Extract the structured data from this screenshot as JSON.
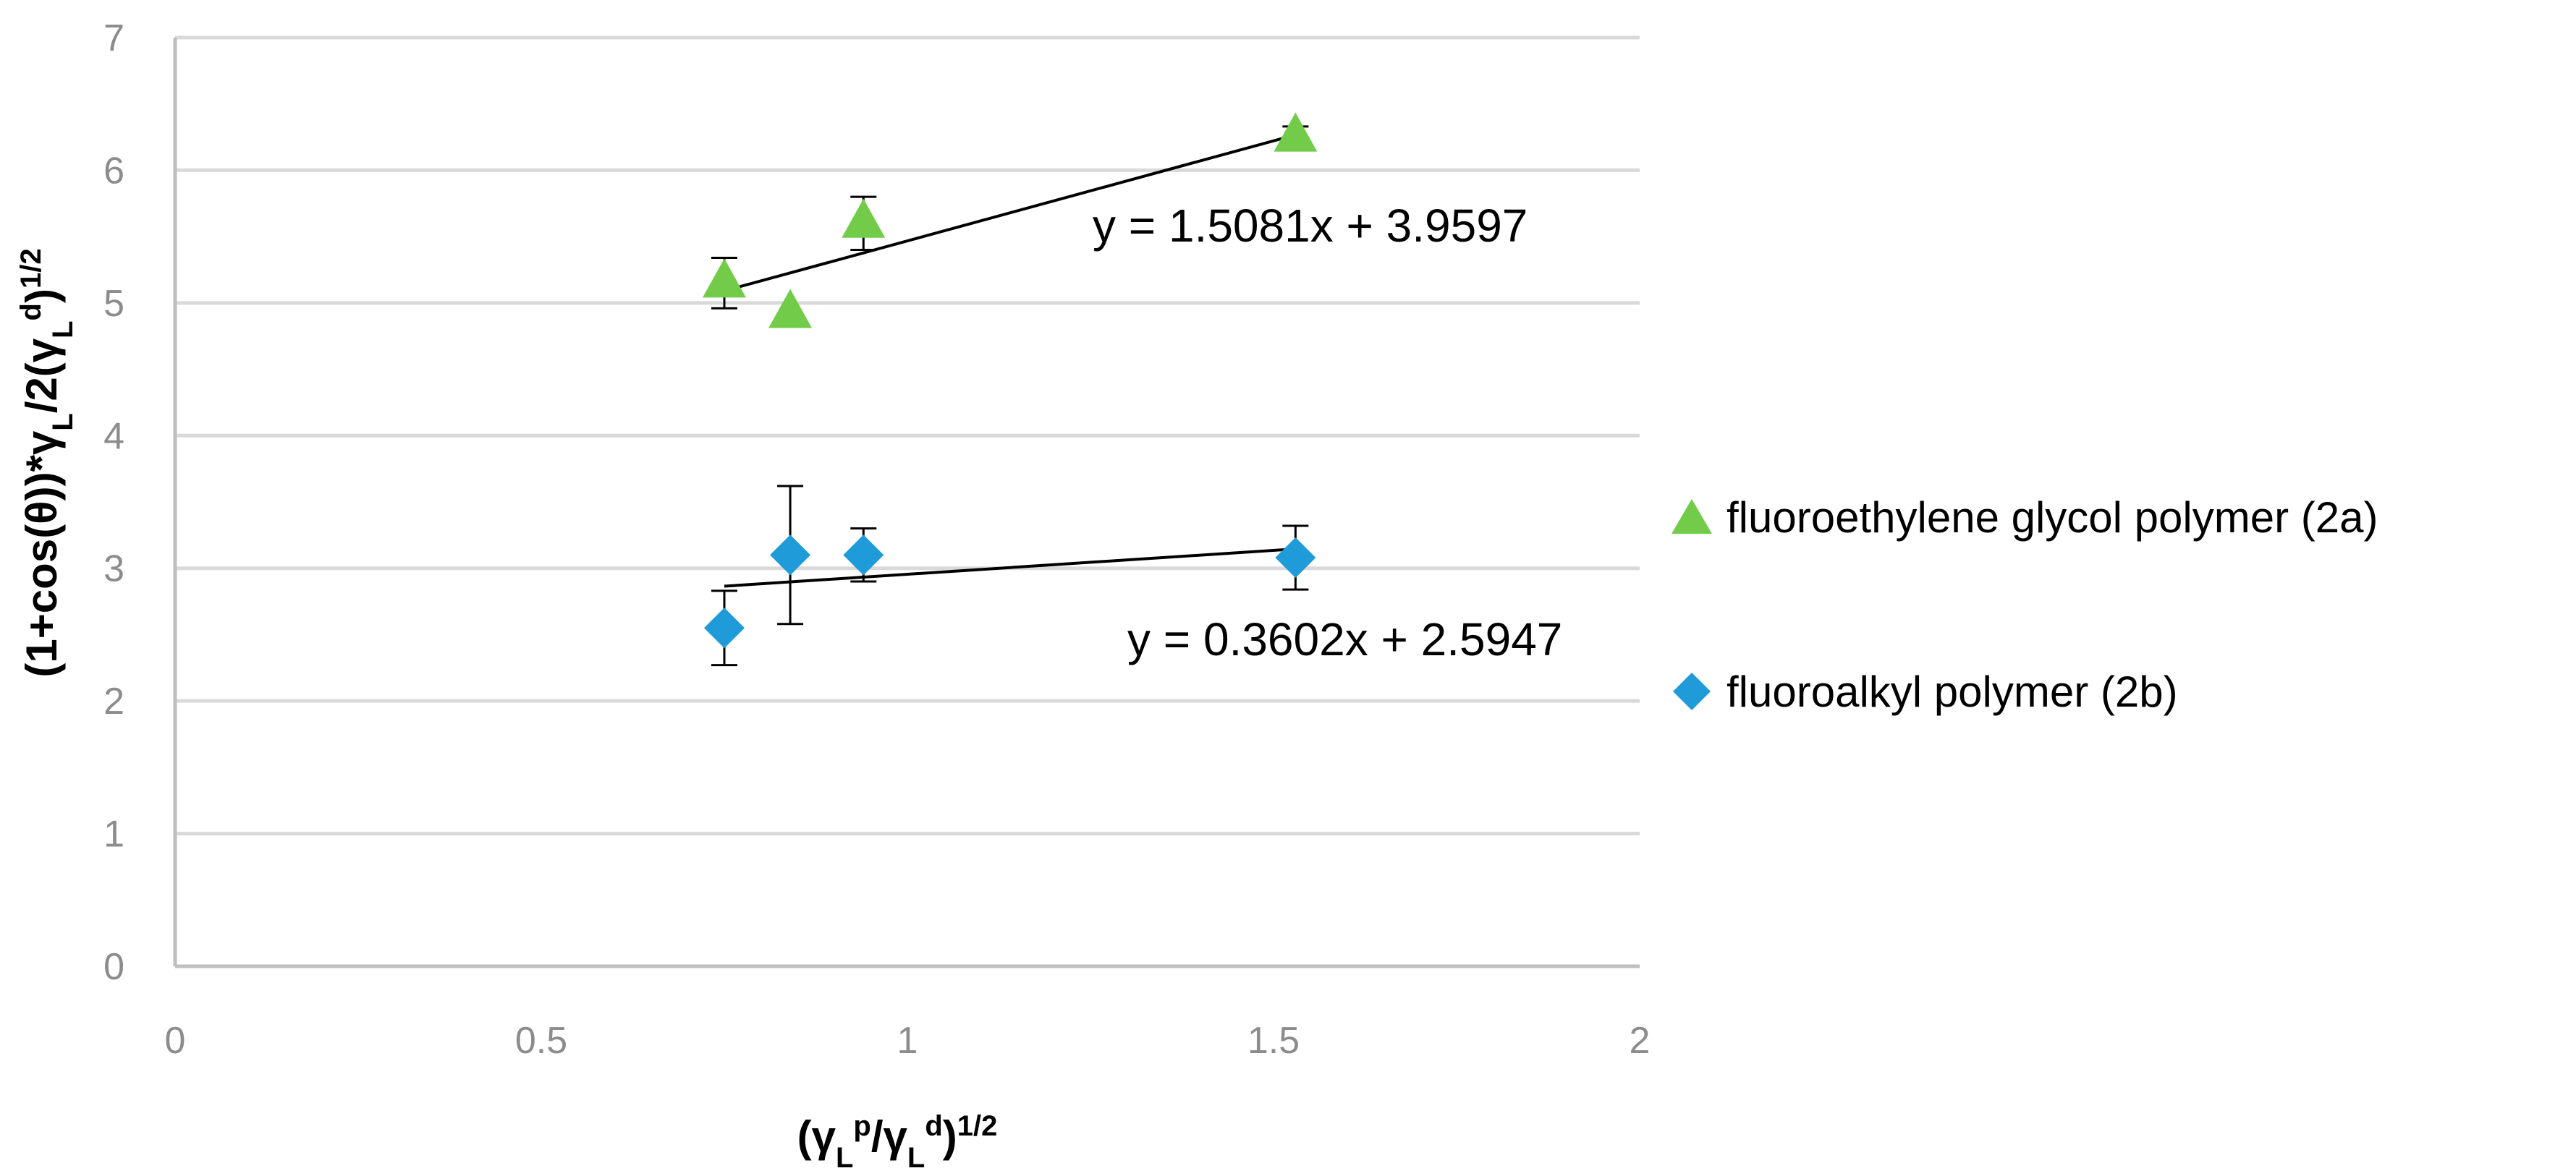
{
  "chart_data": {
    "type": "scatter",
    "title": "",
    "xlabel": {
      "base": "(γ",
      "sub1": "L",
      "sup1": "p",
      "mid": "/γ",
      "sub2": "L",
      "sup2": "d",
      "close": ")",
      "sup3": "1/2"
    },
    "ylabel": {
      "base": "(1+cos(θ))*γ",
      "sub1": "L",
      "mid": "/2(γ",
      "sub2": "L",
      "sup1": "d",
      "close": ")",
      "sup2": "1/2"
    },
    "xlim": [
      0,
      2
    ],
    "ylim": [
      0,
      7
    ],
    "xticks": [
      0,
      0.5,
      1,
      1.5,
      2
    ],
    "xtick_labels": [
      "0",
      "0.5",
      "1",
      "1.5",
      "2"
    ],
    "yticks": [
      0,
      1,
      2,
      3,
      4,
      5,
      6,
      7
    ],
    "ytick_labels": [
      "0",
      "1",
      "2",
      "3",
      "4",
      "5",
      "6",
      "7"
    ],
    "grid": "horizontal",
    "legend_position": "right",
    "series": [
      {
        "name": "fluoroethylene glycol polymer (2a)",
        "marker": "triangle",
        "color": "#72cc4a",
        "x": [
          0.75,
          0.84,
          0.94,
          1.53
        ],
        "y": [
          5.15,
          4.92,
          5.6,
          6.25
        ],
        "yerr": [
          0.19,
          0.0,
          0.2,
          0.08
        ],
        "trendline": {
          "slope": 1.5081,
          "intercept": 3.9597,
          "x_range": [
            0.75,
            1.53
          ],
          "equation": "y = 1.5081x + 3.9597"
        }
      },
      {
        "name": "fluoroalkyl polymer (2b)",
        "marker": "diamond",
        "color": "#1f9bd9",
        "x": [
          0.75,
          0.84,
          0.94,
          1.53
        ],
        "y": [
          2.55,
          3.1,
          3.1,
          3.08
        ],
        "yerr": [
          0.28,
          0.52,
          0.2,
          0.24
        ],
        "trendline": {
          "slope": 0.3602,
          "intercept": 2.5947,
          "x_range": [
            0.75,
            1.53
          ],
          "equation": "y = 0.3602x + 2.5947"
        }
      }
    ]
  },
  "colors": {
    "grid": "#d9d9d9",
    "axis": "#bfbfbf",
    "tick": "#8c8c8c"
  }
}
